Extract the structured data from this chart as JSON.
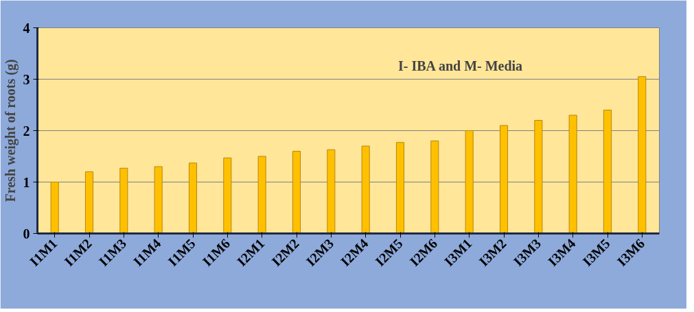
{
  "chart_data": {
    "type": "bar",
    "ylabel": "Fresh weight of roots (g)",
    "categories": [
      "I1M1",
      "I1M2",
      "I1M3",
      "I1M4",
      "I1M5",
      "I1M6",
      "I2M1",
      "I2M2",
      "I2M3",
      "I2M4",
      "I2M5",
      "I2M6",
      "I3M1",
      "I3M2",
      "I3M3",
      "I3M4",
      "I3M5",
      "I3M6"
    ],
    "values": [
      1.0,
      1.2,
      1.27,
      1.3,
      1.37,
      1.47,
      1.5,
      1.6,
      1.63,
      1.7,
      1.77,
      1.8,
      2.0,
      2.1,
      2.2,
      2.3,
      2.4,
      3.05
    ],
    "color": "#ffc000",
    "ylim": [
      0,
      4
    ],
    "yticks": [
      0,
      1,
      2,
      3,
      4
    ],
    "grid": "y",
    "annotations": [
      "I- IBA and M- Media"
    ]
  }
}
